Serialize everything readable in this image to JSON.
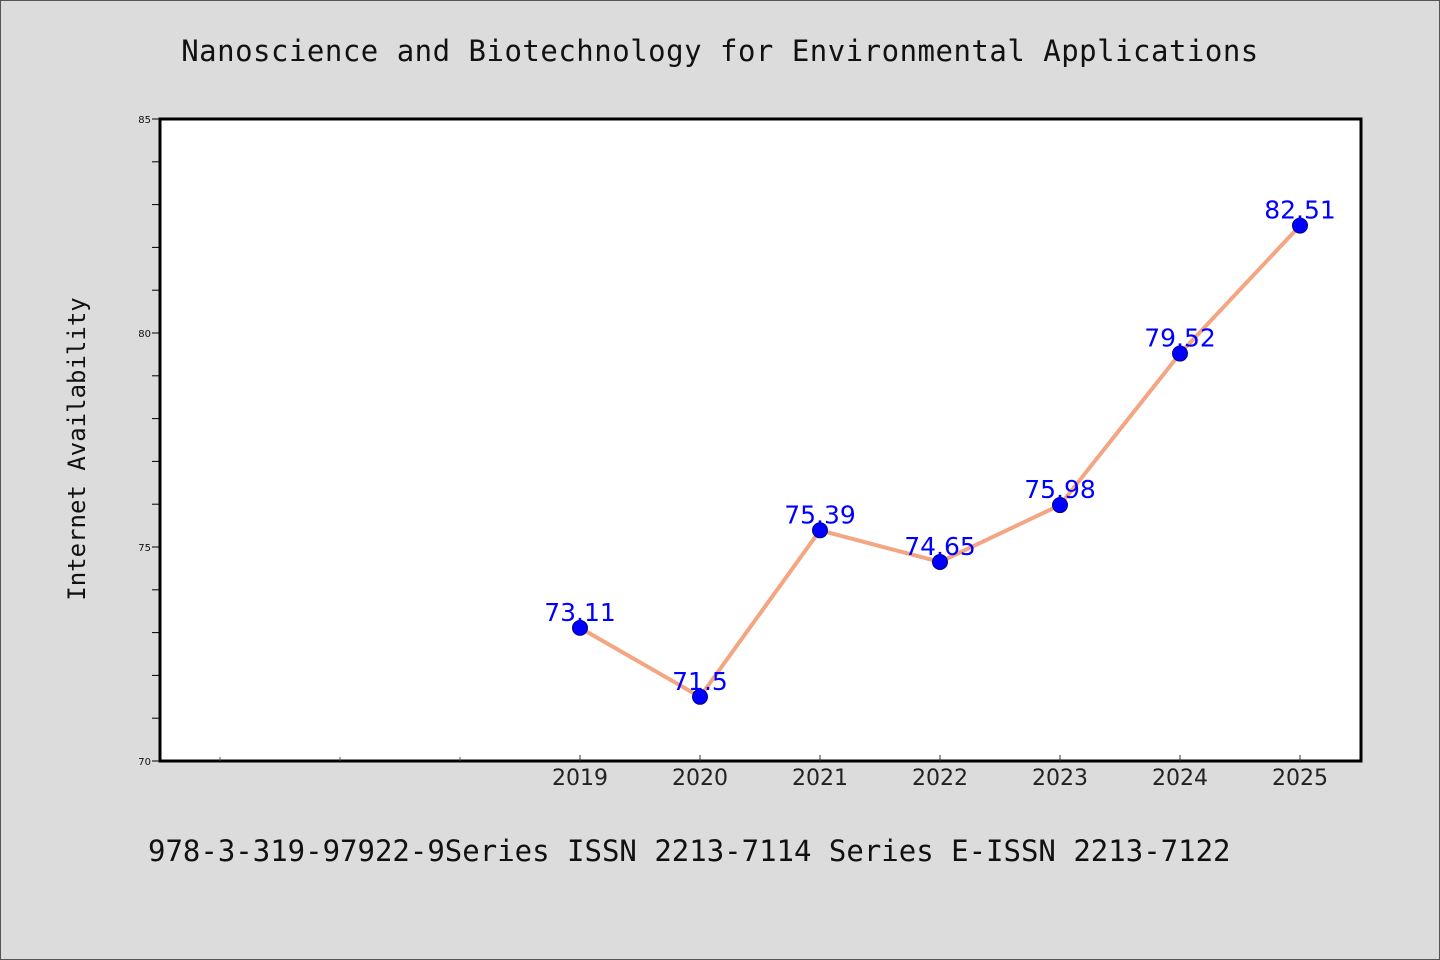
{
  "chart_data": {
    "type": "line",
    "title": "Nanoscience and Biotechnology for Environmental Applications",
    "xlabel": "",
    "ylabel": "Internet Availability",
    "categories": [
      "2019",
      "2020",
      "2021",
      "2022",
      "2023",
      "2024",
      "2025"
    ],
    "series": [
      {
        "values": [
          73.11,
          71.5,
          75.39,
          74.65,
          75.98,
          79.52,
          82.51
        ],
        "labels": [
          "73.11",
          "71.5",
          "75.39",
          "74.65",
          "75.98",
          "79.52",
          "82.51"
        ]
      }
    ],
    "ylim": [
      70,
      85
    ],
    "yticks": [
      "70",
      "75",
      "80",
      "85"
    ],
    "grid": false,
    "legend": "none",
    "colors": {
      "line": "#f4a582",
      "marker": "#0000ff",
      "label": "#0000ff",
      "background": "#dcdcdc",
      "plot_background": "#ffffff"
    }
  },
  "footer": {
    "text": "978-3-319-97922-9Series ISSN 2213-7114 Series E-ISSN 2213-7122"
  }
}
